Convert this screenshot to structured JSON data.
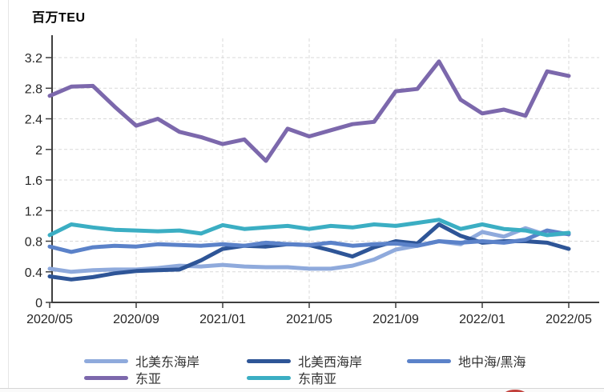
{
  "chart_data": {
    "type": "line",
    "ylabel": "百万TEU",
    "x": [
      "2020/05",
      "2020/06",
      "2020/07",
      "2020/08",
      "2020/09",
      "2020/10",
      "2020/11",
      "2020/12",
      "2021/01",
      "2021/02",
      "2021/03",
      "2021/04",
      "2021/05",
      "2021/06",
      "2021/07",
      "2021/08",
      "2021/09",
      "2021/10",
      "2021/11",
      "2021/12",
      "2022/01",
      "2022/02",
      "2022/03",
      "2022/04",
      "2022/05"
    ],
    "x_tick_labels": [
      "2020/05",
      "2020/09",
      "2021/01",
      "2021/05",
      "2021/09",
      "2022/01",
      "2022/05"
    ],
    "yticks": [
      0,
      0.4,
      0.8,
      1.2,
      1.6,
      2,
      2.4,
      2.8,
      3.2
    ],
    "ytick_labels": [
      "0",
      "0.4",
      "0.8",
      "1.2",
      "1.6",
      "2",
      "2.4",
      "2.8",
      "3.2"
    ],
    "ylim": [
      0,
      3.4
    ],
    "grid": "dashed",
    "legend_position": "bottom",
    "series": [
      {
        "key": "na-east-coast",
        "name": "北美东海岸",
        "color": "#8FAADC",
        "values": [
          0.44,
          0.4,
          0.42,
          0.43,
          0.43,
          0.45,
          0.48,
          0.47,
          0.49,
          0.47,
          0.46,
          0.46,
          0.44,
          0.44,
          0.48,
          0.56,
          0.69,
          0.74,
          0.8,
          0.76,
          0.92,
          0.86,
          0.97,
          0.88,
          0.9
        ]
      },
      {
        "key": "na-west-coast",
        "name": "北美西海岸",
        "color": "#2E5597",
        "values": [
          0.34,
          0.3,
          0.33,
          0.38,
          0.41,
          0.42,
          0.43,
          0.55,
          0.7,
          0.74,
          0.73,
          0.76,
          0.75,
          0.68,
          0.6,
          0.72,
          0.8,
          0.77,
          1.02,
          0.87,
          0.78,
          0.8,
          0.8,
          0.78,
          0.7
        ]
      },
      {
        "key": "med-black-sea",
        "name": "地中海/黑海",
        "color": "#5B82C9",
        "values": [
          0.73,
          0.66,
          0.72,
          0.74,
          0.73,
          0.76,
          0.75,
          0.74,
          0.76,
          0.74,
          0.78,
          0.76,
          0.75,
          0.78,
          0.74,
          0.76,
          0.77,
          0.74,
          0.8,
          0.78,
          0.8,
          0.78,
          0.82,
          0.94,
          0.89
        ]
      },
      {
        "key": "east-asia",
        "name": "东亚",
        "color": "#7C68AC",
        "values": [
          2.7,
          2.82,
          2.83,
          2.56,
          2.31,
          2.4,
          2.23,
          2.16,
          2.07,
          2.13,
          1.85,
          2.27,
          2.17,
          2.25,
          2.33,
          2.36,
          2.76,
          2.79,
          3.15,
          2.65,
          2.47,
          2.52,
          2.44,
          3.02,
          2.96
        ]
      },
      {
        "key": "southeast-asia",
        "name": "东南亚",
        "color": "#3BAEC3",
        "values": [
          0.88,
          1.02,
          0.98,
          0.95,
          0.94,
          0.93,
          0.94,
          0.9,
          1.01,
          0.96,
          0.98,
          1.0,
          0.96,
          1.0,
          0.98,
          1.02,
          1.0,
          1.04,
          1.08,
          0.96,
          1.02,
          0.96,
          0.94,
          0.88,
          0.91
        ]
      }
    ]
  },
  "decorations": {
    "red_badge_color": "#C2413C"
  }
}
